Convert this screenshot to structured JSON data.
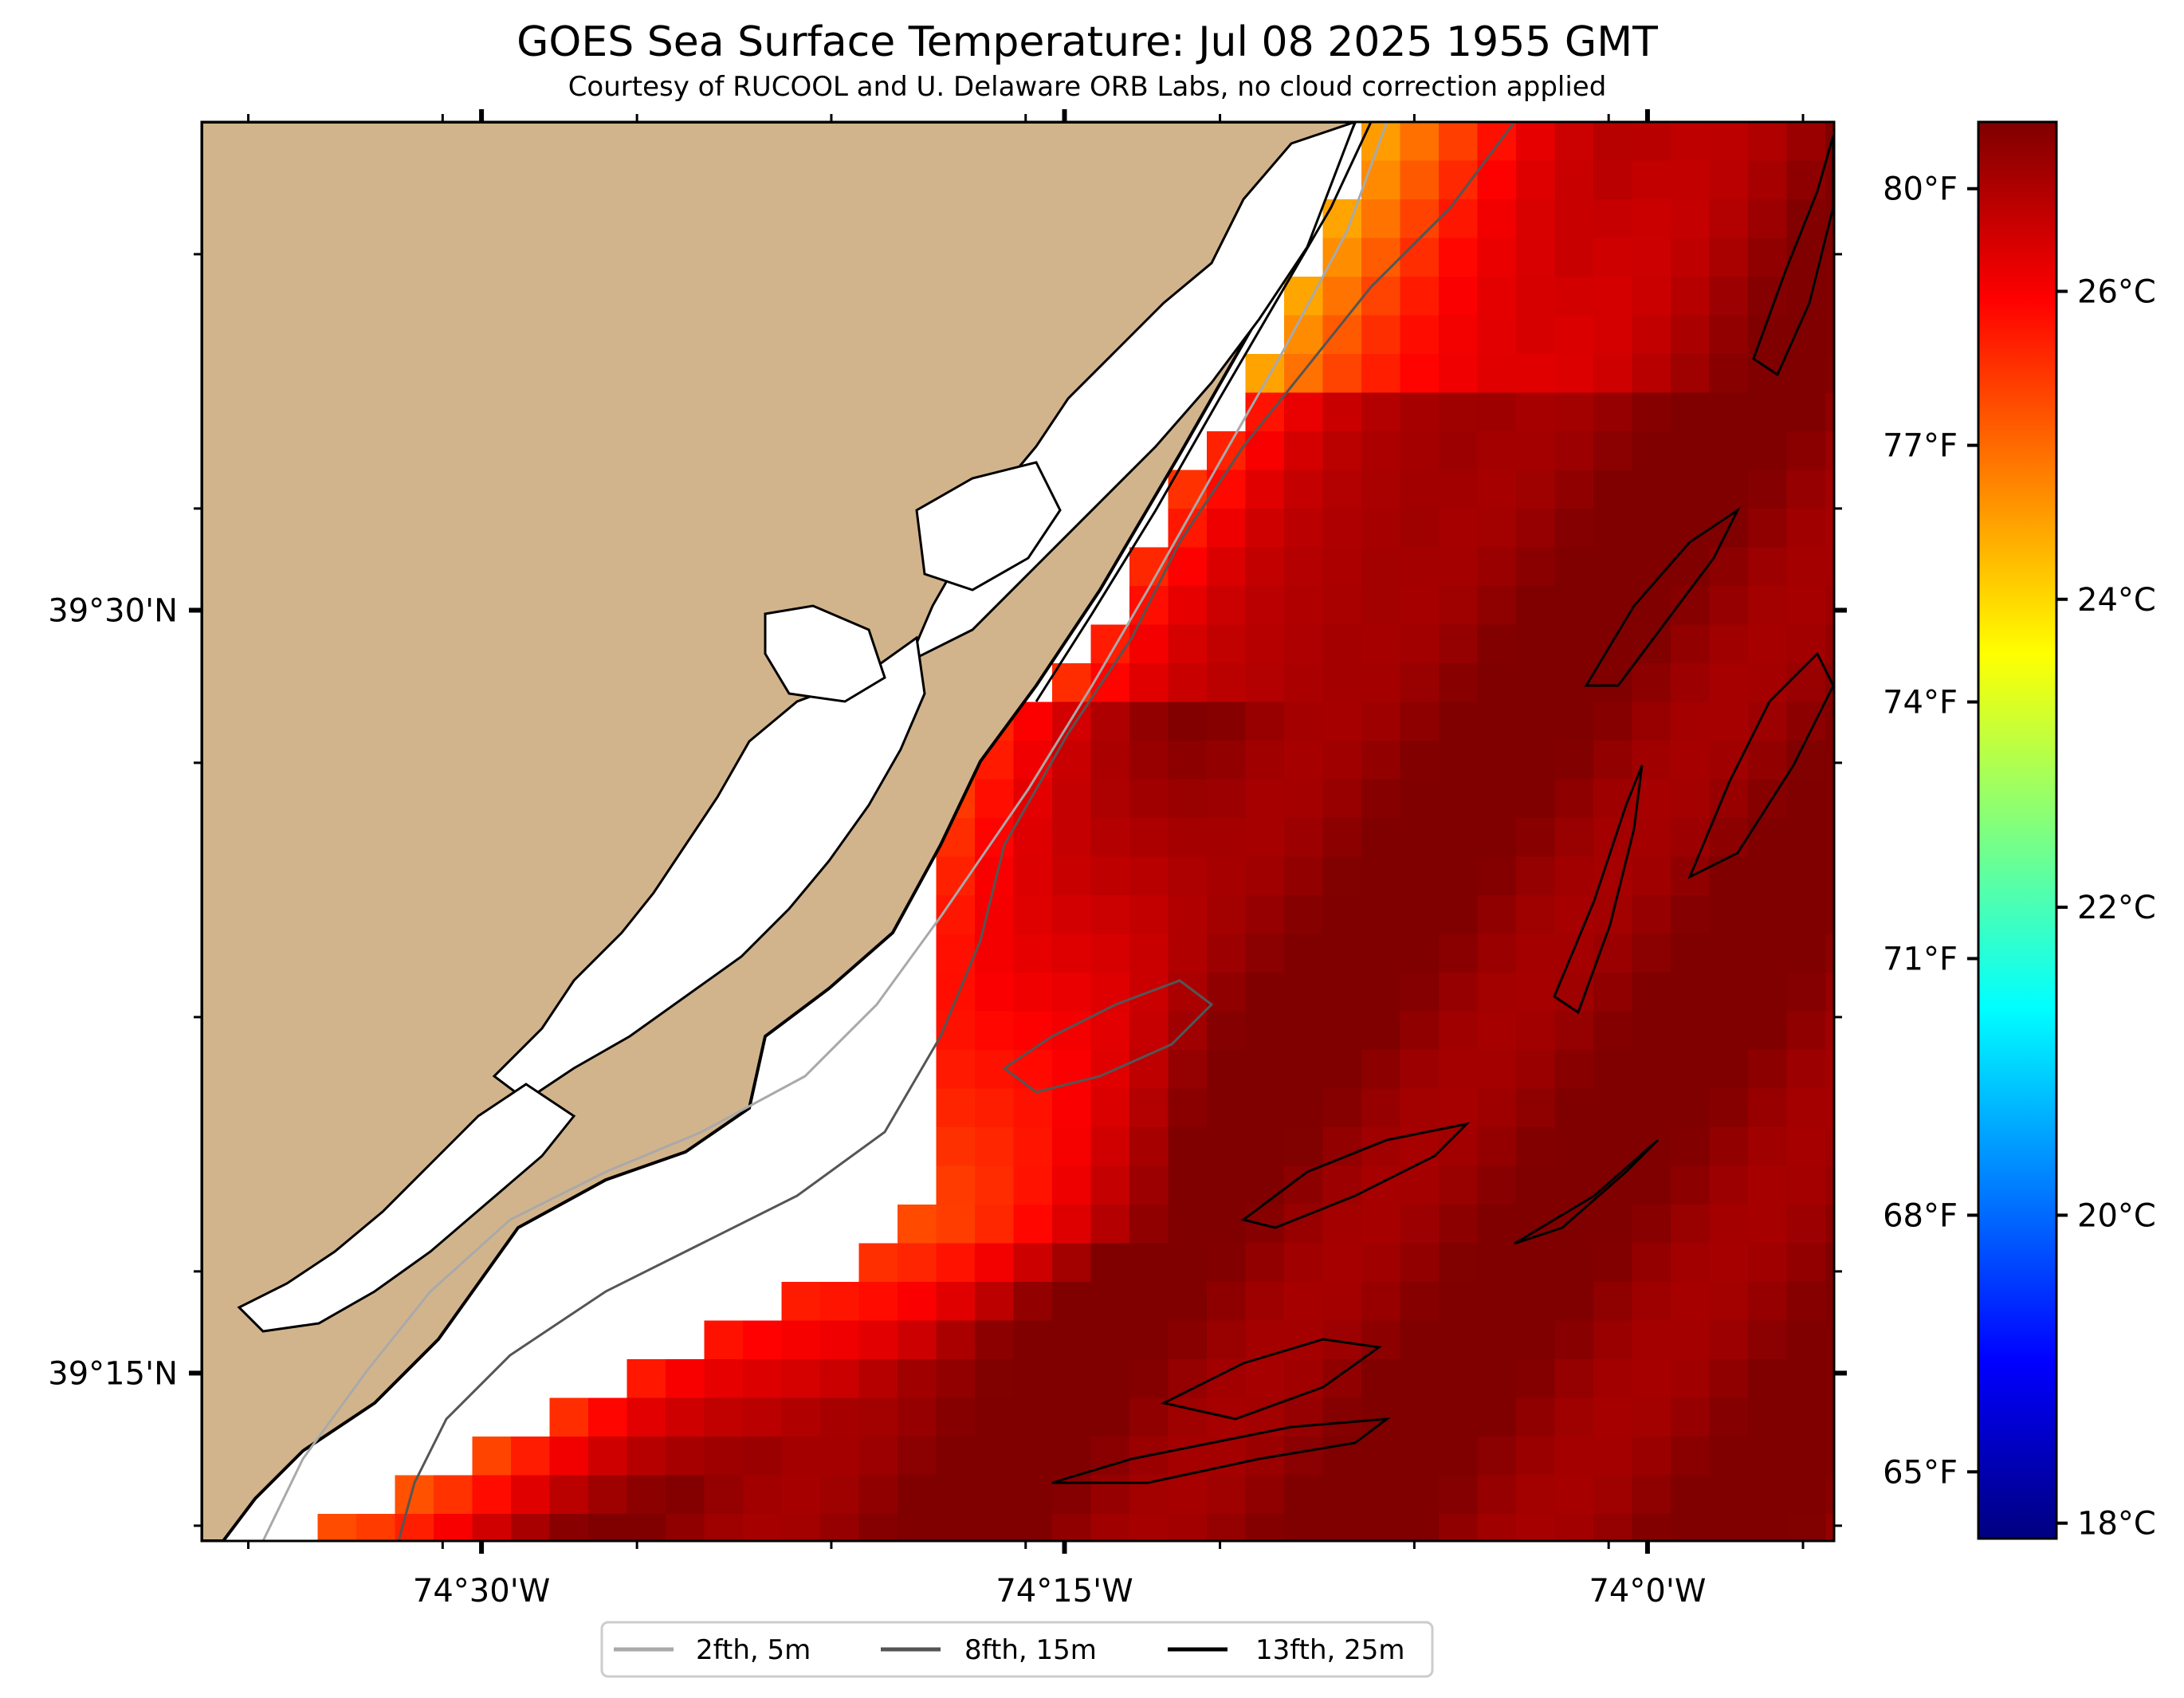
{
  "title": "GOES Sea Surface Temperature: Jul 08 2025 1955 GMT",
  "subtitle": "Courtesy of RUCOOL and U. Delaware ORB Labs, no cloud correction applied",
  "map": {
    "extent": {
      "lon_min": -74.62,
      "lon_max": -73.92,
      "lat_min": 39.195,
      "lat_max": 39.66
    },
    "land_color": "#d2b48c",
    "water_nodata_color": "#ffffff",
    "x_ticks": [
      {
        "lon": -74.5,
        "label": "74°30'W"
      },
      {
        "lon": -74.25,
        "label": "74°15'W"
      },
      {
        "lon": -74.0,
        "label": "74°0'W"
      }
    ],
    "y_ticks": [
      {
        "lat": 39.5,
        "label": "39°30'N"
      },
      {
        "lat": 39.25,
        "label": "39°15'N"
      }
    ]
  },
  "colorbar": {
    "colormap": "jet",
    "range_c": [
      17.9,
      27.1
    ],
    "celsius_ticks": [
      {
        "value": 18,
        "label": "18°C"
      },
      {
        "value": 20,
        "label": "20°C"
      },
      {
        "value": 22,
        "label": "22°C"
      },
      {
        "value": 24,
        "label": "24°C"
      },
      {
        "value": 26,
        "label": "26°C"
      }
    ],
    "fahrenheit_ticks": [
      {
        "value": 65,
        "label": "65°F"
      },
      {
        "value": 68,
        "label": "68°F"
      },
      {
        "value": 71,
        "label": "71°F"
      },
      {
        "value": 74,
        "label": "74°F"
      },
      {
        "value": 77,
        "label": "77°F"
      },
      {
        "value": 80,
        "label": "80°F"
      }
    ]
  },
  "legend": {
    "items": [
      {
        "label": "2fth, 5m",
        "color": "#a9a9a9"
      },
      {
        "label": "8fth, 15m",
        "color": "#555555"
      },
      {
        "label": "13fth, 25m",
        "color": "#000000"
      }
    ]
  }
}
